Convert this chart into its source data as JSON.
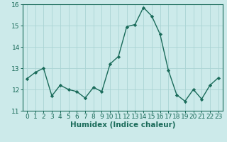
{
  "x": [
    0,
    1,
    2,
    3,
    4,
    5,
    6,
    7,
    8,
    9,
    10,
    11,
    12,
    13,
    14,
    15,
    16,
    17,
    18,
    19,
    20,
    21,
    22,
    23
  ],
  "y": [
    12.5,
    12.8,
    13.0,
    11.7,
    12.2,
    12.0,
    11.9,
    11.6,
    12.1,
    11.9,
    13.2,
    13.55,
    14.95,
    15.05,
    15.85,
    15.45,
    14.6,
    12.9,
    11.75,
    11.45,
    12.0,
    11.55,
    12.2,
    12.55
  ],
  "line_color": "#1a6b5a",
  "marker": "D",
  "marker_size": 2.2,
  "bg_color": "#cceaea",
  "grid_color": "#aad4d4",
  "xlabel": "Humidex (Indice chaleur)",
  "ylabel": "",
  "ylim": [
    11,
    16
  ],
  "xlim": [
    -0.5,
    23.5
  ],
  "yticks": [
    11,
    12,
    13,
    14,
    15,
    16
  ],
  "xticks": [
    0,
    1,
    2,
    3,
    4,
    5,
    6,
    7,
    8,
    9,
    10,
    11,
    12,
    13,
    14,
    15,
    16,
    17,
    18,
    19,
    20,
    21,
    22,
    23
  ],
  "tick_label_size": 6.5,
  "xlabel_size": 7.5,
  "line_width": 1.0
}
